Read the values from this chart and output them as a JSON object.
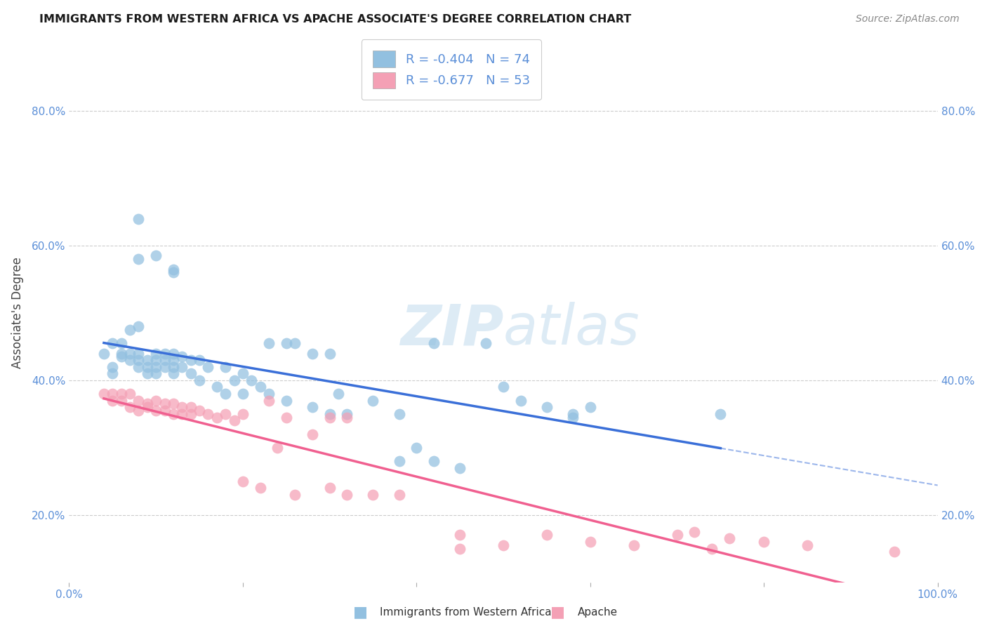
{
  "title": "IMMIGRANTS FROM WESTERN AFRICA VS APACHE ASSOCIATE'S DEGREE CORRELATION CHART",
  "source": "Source: ZipAtlas.com",
  "ylabel": "Associate's Degree",
  "legend_label1": "Immigrants from Western Africa",
  "legend_label2": "Apache",
  "r1": -0.404,
  "n1": 74,
  "r2": -0.677,
  "n2": 53,
  "color_blue": "#92C0E0",
  "color_pink": "#F4A0B5",
  "line_blue": "#3A6FD8",
  "line_pink": "#F06090",
  "watermark_zip": "ZIP",
  "watermark_atlas": "atlas",
  "bg_color": "#FFFFFF",
  "grid_color": "#CCCCCC",
  "tick_color": "#5B8FD8",
  "blue_points": [
    [
      0.4,
      44.0
    ],
    [
      0.5,
      42.0
    ],
    [
      0.5,
      41.0
    ],
    [
      0.6,
      45.5
    ],
    [
      0.5,
      45.5
    ],
    [
      0.6,
      44.0
    ],
    [
      0.7,
      44.0
    ],
    [
      0.6,
      43.5
    ],
    [
      0.7,
      43.0
    ],
    [
      0.8,
      44.0
    ],
    [
      0.8,
      43.0
    ],
    [
      0.8,
      42.0
    ],
    [
      0.9,
      43.0
    ],
    [
      0.9,
      42.0
    ],
    [
      0.9,
      41.0
    ],
    [
      1.0,
      44.0
    ],
    [
      1.0,
      43.0
    ],
    [
      1.0,
      42.0
    ],
    [
      1.0,
      41.0
    ],
    [
      1.1,
      44.0
    ],
    [
      1.1,
      43.0
    ],
    [
      1.1,
      42.0
    ],
    [
      1.2,
      44.0
    ],
    [
      1.2,
      43.0
    ],
    [
      1.2,
      42.0
    ],
    [
      1.2,
      41.0
    ],
    [
      1.3,
      43.5
    ],
    [
      1.3,
      42.0
    ],
    [
      1.4,
      43.0
    ],
    [
      1.4,
      41.0
    ],
    [
      1.5,
      43.0
    ],
    [
      1.5,
      40.0
    ],
    [
      1.6,
      42.0
    ],
    [
      1.7,
      39.0
    ],
    [
      1.8,
      42.0
    ],
    [
      1.8,
      38.0
    ],
    [
      1.9,
      40.0
    ],
    [
      2.0,
      41.0
    ],
    [
      2.0,
      38.0
    ],
    [
      2.1,
      40.0
    ],
    [
      2.2,
      39.0
    ],
    [
      2.3,
      45.5
    ],
    [
      2.3,
      38.0
    ],
    [
      2.5,
      45.5
    ],
    [
      2.5,
      37.0
    ],
    [
      2.6,
      45.5
    ],
    [
      2.8,
      44.0
    ],
    [
      2.8,
      36.0
    ],
    [
      3.0,
      44.0
    ],
    [
      3.0,
      35.0
    ],
    [
      3.1,
      38.0
    ],
    [
      3.2,
      35.0
    ],
    [
      3.5,
      37.0
    ],
    [
      3.8,
      35.0
    ],
    [
      3.8,
      28.0
    ],
    [
      4.0,
      30.0
    ],
    [
      4.2,
      45.5
    ],
    [
      4.2,
      28.0
    ],
    [
      4.5,
      27.0
    ],
    [
      4.8,
      45.5
    ],
    [
      5.0,
      39.0
    ],
    [
      5.2,
      37.0
    ],
    [
      5.5,
      36.0
    ],
    [
      5.8,
      35.0
    ],
    [
      0.8,
      64.0
    ],
    [
      1.0,
      58.5
    ],
    [
      1.2,
      56.5
    ],
    [
      1.2,
      56.0
    ],
    [
      0.8,
      58.0
    ],
    [
      0.7,
      47.5
    ],
    [
      0.8,
      48.0
    ],
    [
      5.8,
      34.5
    ],
    [
      6.0,
      36.0
    ],
    [
      7.5,
      35.0
    ]
  ],
  "pink_points": [
    [
      0.4,
      38.0
    ],
    [
      0.5,
      38.0
    ],
    [
      0.5,
      37.0
    ],
    [
      0.6,
      38.0
    ],
    [
      0.6,
      37.0
    ],
    [
      0.7,
      38.0
    ],
    [
      0.7,
      36.0
    ],
    [
      0.8,
      37.0
    ],
    [
      0.8,
      35.5
    ],
    [
      0.9,
      36.5
    ],
    [
      0.9,
      36.0
    ],
    [
      1.0,
      37.0
    ],
    [
      1.0,
      35.5
    ],
    [
      1.1,
      36.5
    ],
    [
      1.1,
      35.5
    ],
    [
      1.2,
      36.5
    ],
    [
      1.2,
      35.0
    ],
    [
      1.3,
      36.0
    ],
    [
      1.3,
      35.0
    ],
    [
      1.4,
      36.0
    ],
    [
      1.4,
      35.0
    ],
    [
      1.5,
      35.5
    ],
    [
      1.6,
      35.0
    ],
    [
      1.7,
      34.5
    ],
    [
      1.8,
      35.0
    ],
    [
      1.9,
      34.0
    ],
    [
      2.0,
      35.0
    ],
    [
      2.0,
      25.0
    ],
    [
      2.2,
      24.0
    ],
    [
      2.3,
      37.0
    ],
    [
      2.4,
      30.0
    ],
    [
      2.5,
      34.5
    ],
    [
      2.6,
      23.0
    ],
    [
      2.8,
      32.0
    ],
    [
      3.0,
      34.5
    ],
    [
      3.0,
      24.0
    ],
    [
      3.2,
      34.5
    ],
    [
      3.2,
      23.0
    ],
    [
      3.5,
      23.0
    ],
    [
      3.8,
      23.0
    ],
    [
      4.5,
      17.0
    ],
    [
      5.0,
      15.5
    ],
    [
      5.5,
      17.0
    ],
    [
      6.0,
      16.0
    ],
    [
      6.5,
      15.5
    ],
    [
      7.0,
      17.0
    ],
    [
      7.2,
      17.5
    ],
    [
      7.4,
      15.0
    ],
    [
      7.6,
      16.5
    ],
    [
      8.0,
      16.0
    ],
    [
      8.5,
      15.5
    ],
    [
      9.5,
      14.5
    ],
    [
      4.5,
      15.0
    ]
  ],
  "xlim": [
    0,
    10.0
  ],
  "ylim": [
    10.0,
    90.0
  ],
  "xtick_positions": [
    0,
    2.0,
    4.0,
    6.0,
    8.0,
    10.0
  ],
  "xtick_labels": [
    "0.0%",
    "",
    "",
    "",
    "",
    "100.0%"
  ],
  "ytick_positions": [
    20.0,
    40.0,
    60.0,
    80.0
  ],
  "ytick_labels": [
    "20.0%",
    "40.0%",
    "60.0%",
    "80.0%"
  ]
}
